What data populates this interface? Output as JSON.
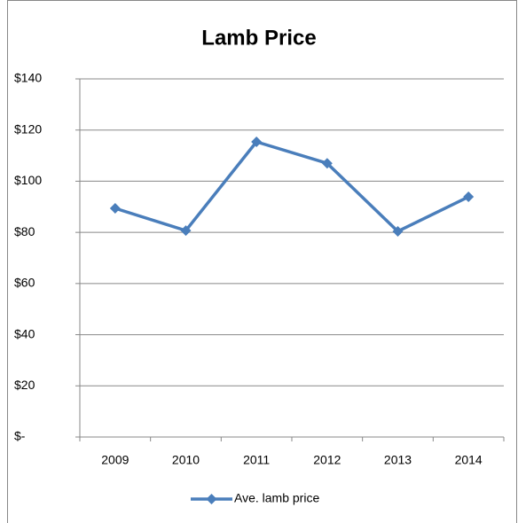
{
  "chart_data": {
    "type": "line",
    "title": "Lamb Price",
    "categories": [
      "2009",
      "2010",
      "2011",
      "2012",
      "2013",
      "2014"
    ],
    "series": [
      {
        "name": "Ave. lamb price",
        "color": "#4a7ebb",
        "values": [
          89.4,
          80.7,
          115.4,
          107,
          80.4,
          93.9
        ]
      }
    ],
    "ylim": [
      0,
      140
    ],
    "yticks": [
      {
        "value": 0,
        "label": "$-"
      },
      {
        "value": 20,
        "label": "$20"
      },
      {
        "value": 40,
        "label": "$40"
      },
      {
        "value": 60,
        "label": "$60"
      },
      {
        "value": 80,
        "label": "$80"
      },
      {
        "value": 100,
        "label": "$100"
      },
      {
        "value": 120,
        "label": "$120"
      },
      {
        "value": 140,
        "label": "$140"
      }
    ],
    "grid": true,
    "legend": "bottom"
  }
}
